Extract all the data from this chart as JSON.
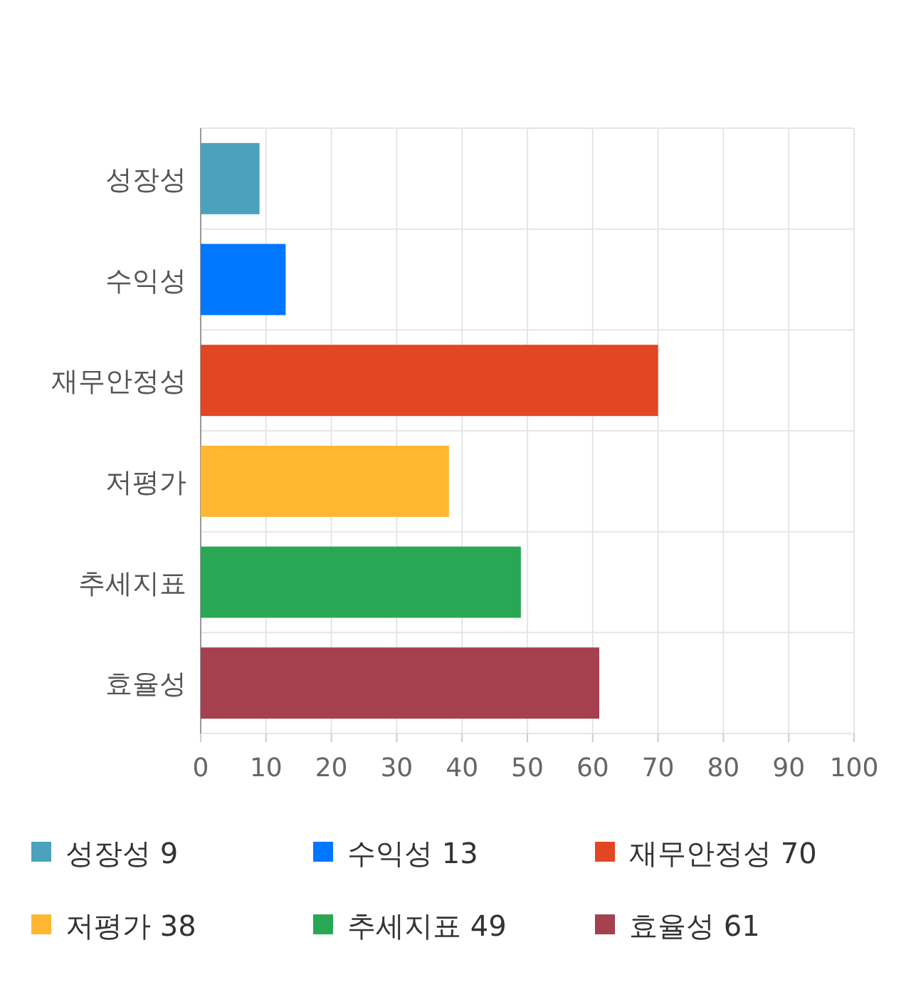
{
  "chart_data": {
    "type": "bar",
    "orientation": "horizontal",
    "categories": [
      "성장성",
      "수익성",
      "재무안정성",
      "저평가",
      "추세지표",
      "효율성"
    ],
    "series": [
      {
        "name": "성장성 9",
        "color": "#4aa3bb",
        "values": [
          9,
          null,
          null,
          null,
          null,
          null
        ]
      },
      {
        "name": "수익성 13",
        "color": "#0077ff",
        "values": [
          null,
          13,
          null,
          null,
          null,
          null
        ]
      },
      {
        "name": "재무안정성 70",
        "color": "#e24623",
        "values": [
          null,
          null,
          70,
          null,
          null,
          null
        ]
      },
      {
        "name": "저평가 38",
        "color": "#ffb732",
        "values": [
          null,
          null,
          null,
          38,
          null,
          null
        ]
      },
      {
        "name": "추세지표 49",
        "color": "#28a854",
        "values": [
          null,
          null,
          null,
          null,
          49,
          null
        ]
      },
      {
        "name": "효율성 61",
        "color": "#a5404e",
        "values": [
          null,
          null,
          null,
          null,
          null,
          61
        ]
      }
    ],
    "xlim": [
      0,
      100
    ],
    "xticks": [
      0,
      10,
      20,
      30,
      40,
      50,
      60,
      70,
      80,
      90,
      100
    ],
    "grid": true,
    "legend": "bottom"
  }
}
